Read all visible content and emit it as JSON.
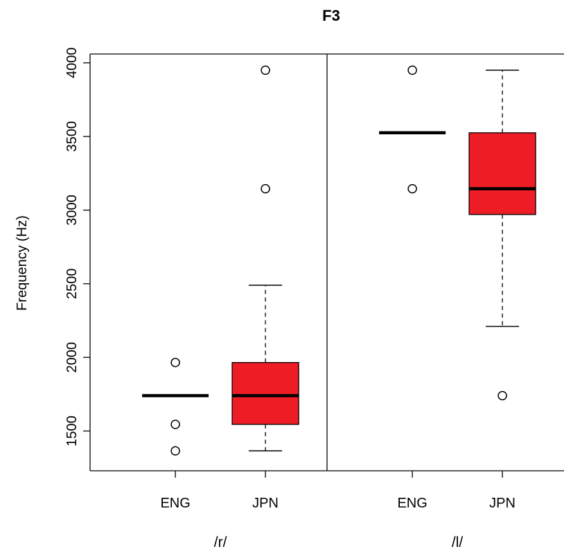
{
  "chart_data": {
    "type": "box",
    "title": "F3",
    "ylabel": "Frequency (Hz)",
    "ylim": [
      1230,
      4060
    ],
    "yticks": [
      1500,
      2000,
      2500,
      3000,
      3500,
      4000
    ],
    "panels": [
      {
        "label": "/r/",
        "groups": [
          {
            "name": "ENG",
            "fill": "none",
            "box": {
              "lower_whisker": null,
              "q1": 1740,
              "median": 1740,
              "q3": 1740,
              "upper_whisker": null
            },
            "outliers": [
              1965,
              1545,
              1365
            ]
          },
          {
            "name": "JPN",
            "fill": "#ee1c25",
            "box": {
              "lower_whisker": 1365,
              "q1": 1545,
              "median": 1740,
              "q3": 1965,
              "upper_whisker": 2490
            },
            "outliers": [
              3950,
              3145
            ]
          }
        ]
      },
      {
        "label": "/l/",
        "groups": [
          {
            "name": "ENG",
            "fill": "none",
            "box": {
              "lower_whisker": null,
              "q1": 3525,
              "median": 3525,
              "q3": 3525,
              "upper_whisker": null
            },
            "outliers": [
              3950,
              3145
            ]
          },
          {
            "name": "JPN",
            "fill": "#ee1c25",
            "box": {
              "lower_whisker": 2210,
              "q1": 2970,
              "median": 3145,
              "q3": 3525,
              "upper_whisker": 3950
            },
            "outliers": [
              1740
            ]
          }
        ]
      }
    ]
  }
}
